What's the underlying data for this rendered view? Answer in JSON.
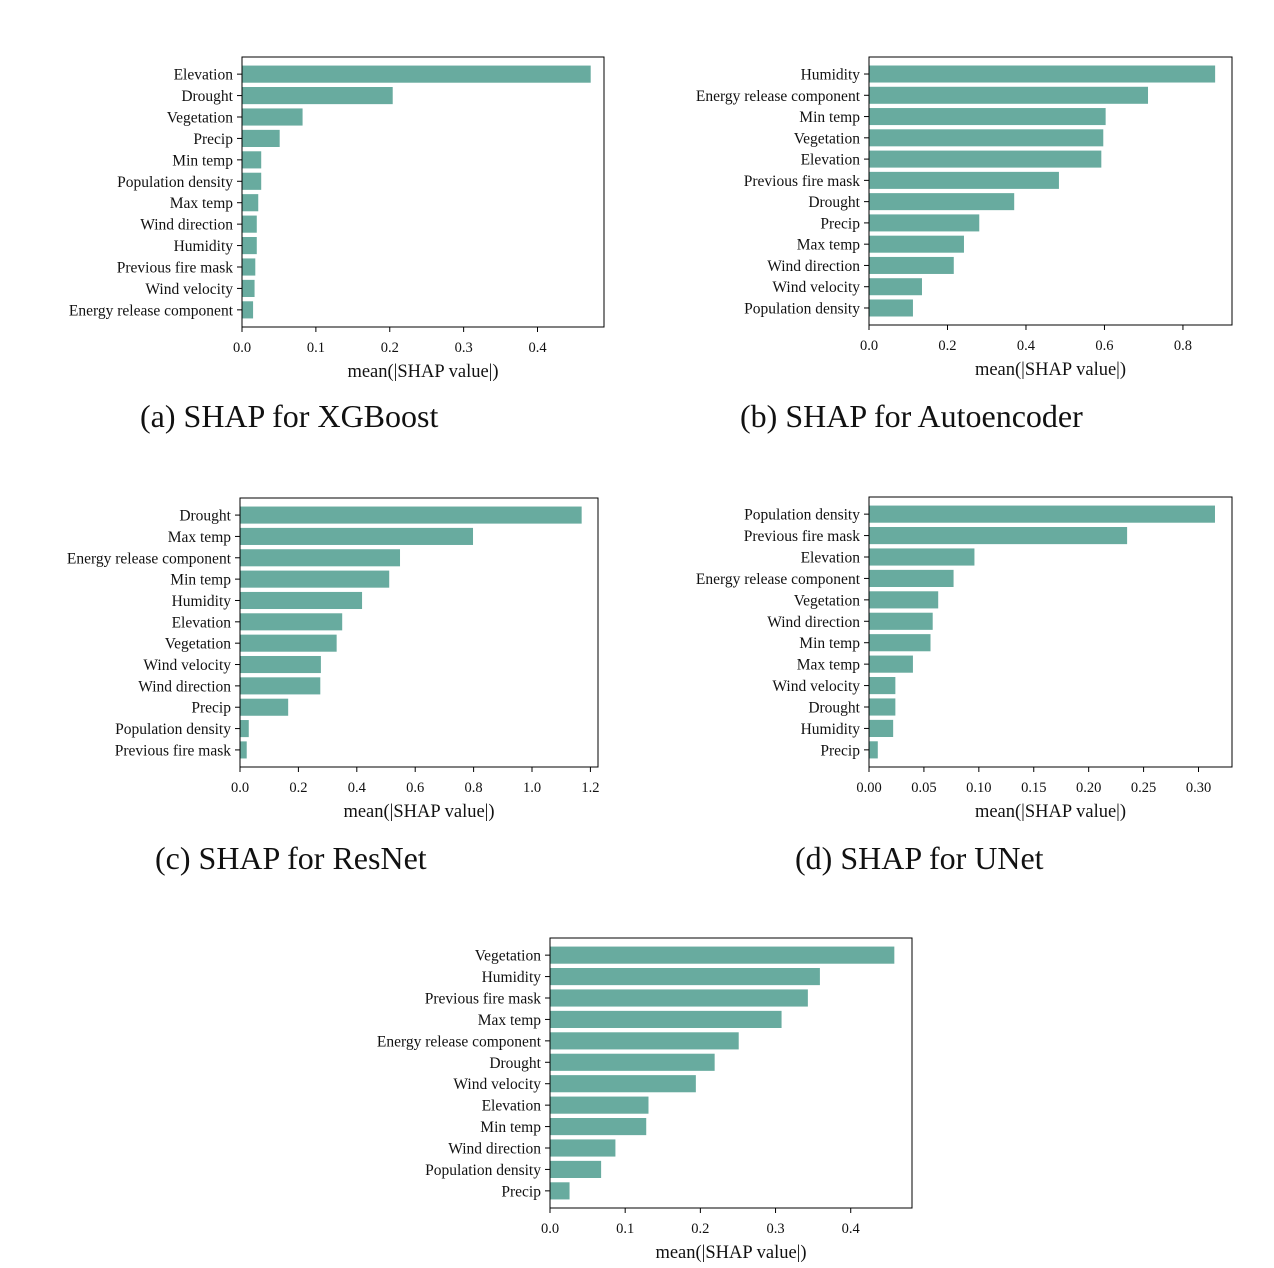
{
  "colors": {
    "bar": "#68ab9f",
    "axis": "#000000",
    "text": "#111111"
  },
  "chart_data": [
    {
      "type": "bar",
      "orientation": "horizontal",
      "caption": "(a) SHAP for XGBoost",
      "xlabel": "mean(|SHAP value|)",
      "xlim": [
        0,
        0.49
      ],
      "xticks": [
        "0.0",
        "0.1",
        "0.2",
        "0.3",
        "0.4"
      ],
      "categories": [
        "Elevation",
        "Drought",
        "Vegetation",
        "Precip",
        "Min temp",
        "Population density",
        "Max temp",
        "Wind direction",
        "Humidity",
        "Previous fire mask",
        "Wind velocity",
        "Energy release component"
      ],
      "values": [
        0.472,
        0.204,
        0.082,
        0.051,
        0.026,
        0.026,
        0.022,
        0.02,
        0.02,
        0.018,
        0.017,
        0.015
      ],
      "grid": false
    },
    {
      "type": "bar",
      "orientation": "horizontal",
      "caption": "(b) SHAP for Autoencoder",
      "xlabel": "mean(|SHAP value|)",
      "xlim": [
        0,
        0.925
      ],
      "xticks": [
        "0.0",
        "0.2",
        "0.4",
        "0.6",
        "0.8"
      ],
      "categories": [
        "Humidity",
        "Energy release component",
        "Min temp",
        "Vegetation",
        "Elevation",
        "Previous fire mask",
        "Drought",
        "Precip",
        "Max temp",
        "Wind direction",
        "Wind velocity",
        "Population density"
      ],
      "values": [
        0.882,
        0.711,
        0.603,
        0.597,
        0.592,
        0.484,
        0.37,
        0.281,
        0.242,
        0.216,
        0.135,
        0.112
      ],
      "grid": false
    },
    {
      "type": "bar",
      "orientation": "horizontal",
      "caption": "(c) SHAP for ResNet",
      "xlabel": "mean(|SHAP value|)",
      "xlim": [
        0,
        1.226
      ],
      "xticks": [
        "0.0",
        "0.2",
        "0.4",
        "0.6",
        "0.8",
        "1.0",
        "1.2"
      ],
      "categories": [
        "Drought",
        "Max temp",
        "Energy release component",
        "Min temp",
        "Humidity",
        "Elevation",
        "Vegetation",
        "Wind velocity",
        "Wind direction",
        "Precip",
        "Population density",
        "Previous fire mask"
      ],
      "values": [
        1.17,
        0.798,
        0.548,
        0.511,
        0.418,
        0.35,
        0.331,
        0.277,
        0.275,
        0.165,
        0.03,
        0.023
      ],
      "grid": false
    },
    {
      "type": "bar",
      "orientation": "horizontal",
      "caption": "(d) SHAP for UNet",
      "xlabel": "mean(|SHAP value|)",
      "xlim": [
        0,
        0.3305
      ],
      "xticks": [
        "0.00",
        "0.05",
        "0.10",
        "0.15",
        "0.20",
        "0.25",
        "0.30"
      ],
      "categories": [
        "Population density",
        "Previous fire mask",
        "Elevation",
        "Energy release component",
        "Vegetation",
        "Wind direction",
        "Min temp",
        "Max temp",
        "Wind velocity",
        "Drought",
        "Humidity",
        "Precip"
      ],
      "values": [
        0.315,
        0.235,
        0.096,
        0.077,
        0.063,
        0.058,
        0.056,
        0.04,
        0.024,
        0.024,
        0.022,
        0.008
      ],
      "grid": false
    },
    {
      "type": "bar",
      "orientation": "horizontal",
      "caption": "",
      "xlabel": "mean(|SHAP value|)",
      "xlim": [
        0,
        0.4815
      ],
      "xticks": [
        "0.0",
        "0.1",
        "0.2",
        "0.3",
        "0.4"
      ],
      "categories": [
        "Vegetation",
        "Humidity",
        "Previous fire mask",
        "Max temp",
        "Energy release component",
        "Drought",
        "Wind velocity",
        "Elevation",
        "Min temp",
        "Wind direction",
        "Population density",
        "Precip"
      ],
      "values": [
        0.458,
        0.359,
        0.343,
        0.308,
        0.251,
        0.219,
        0.194,
        0.131,
        0.128,
        0.087,
        0.068,
        0.026
      ],
      "grid": false
    }
  ]
}
